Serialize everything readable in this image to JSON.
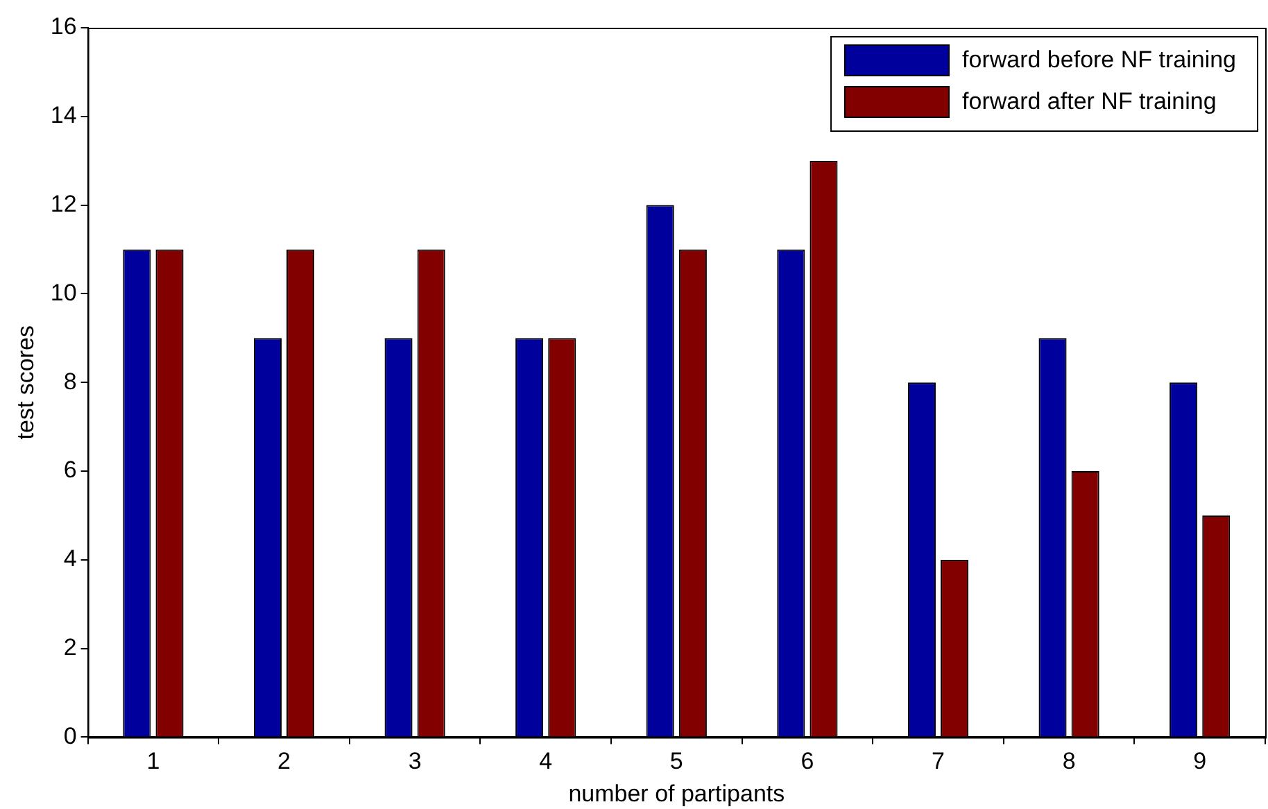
{
  "chart_data": {
    "type": "bar",
    "xlabel": "number of partipants",
    "ylabel": "test scores",
    "categories": [
      "1",
      "2",
      "3",
      "4",
      "5",
      "6",
      "7",
      "8",
      "9"
    ],
    "series": [
      {
        "name": "forward before NF training",
        "color": "#00009c",
        "values": [
          11,
          9,
          9,
          9,
          12,
          11,
          8,
          9,
          8
        ]
      },
      {
        "name": "forward after NF training",
        "color": "#820000",
        "values": [
          11,
          11,
          11,
          9,
          11,
          13,
          4,
          6,
          5
        ]
      }
    ],
    "ylim": [
      0,
      16
    ],
    "yticks": [
      0,
      2,
      4,
      6,
      8,
      10,
      12,
      14,
      16
    ],
    "grid": false,
    "legend": "top right"
  }
}
